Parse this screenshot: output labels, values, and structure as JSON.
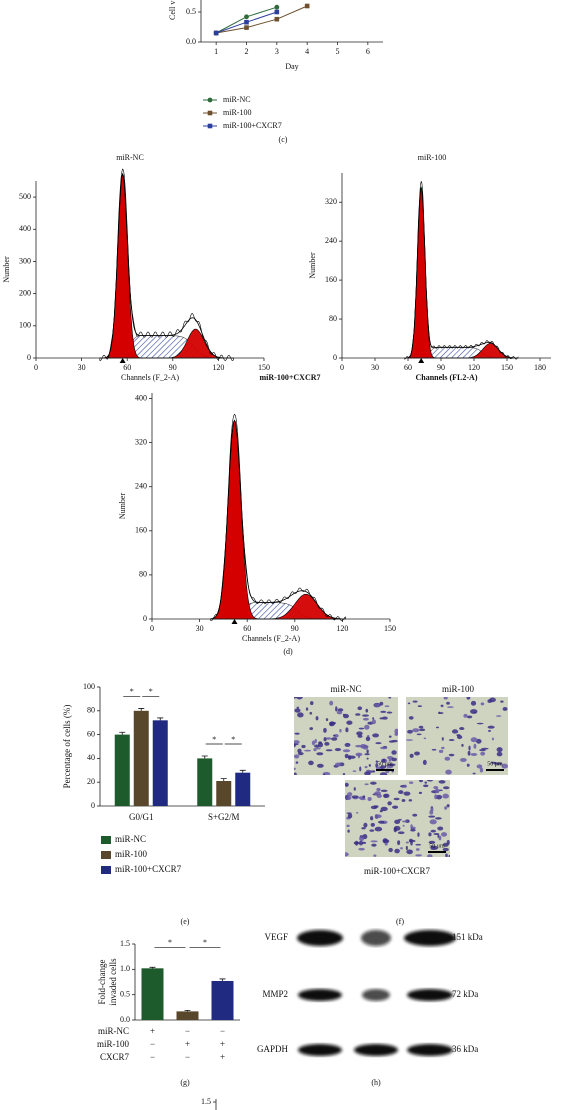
{
  "panel_c": {
    "type": "line",
    "ylabel": "Cell v",
    "xlabel": "Day",
    "x": [
      1,
      2,
      3,
      4
    ],
    "xlim": [
      0.5,
      6.5
    ],
    "xticks": [
      1,
      2,
      3,
      4,
      5,
      6
    ],
    "ylim": [
      0,
      0.7
    ],
    "yticks": [
      {
        "value": 0,
        "label": "0.0"
      },
      {
        "value": 0.5,
        "label": "0.5"
      }
    ],
    "series": [
      {
        "name": "miR-NC",
        "color": "#2f6b3c",
        "marker": "circle",
        "values": [
          0.15,
          0.42,
          0.58,
          null
        ]
      },
      {
        "name": "miR-100",
        "color": "#6e4f2e",
        "marker": "square",
        "values": [
          0.15,
          0.24,
          0.38,
          0.6
        ]
      },
      {
        "name": "miR-100+CXCR7",
        "color": "#2d3f9e",
        "marker": "square",
        "values": [
          0.15,
          0.33,
          0.5,
          null
        ]
      }
    ],
    "panel_label": "(c)"
  },
  "panel_d": {
    "type": "histograms",
    "histograms": [
      {
        "title": "miR-NC",
        "xlabel": "Channels (F_2-A)",
        "ylabel": "Number",
        "xlim": [
          0,
          150
        ],
        "xticks": [
          0,
          30,
          60,
          90,
          120,
          150
        ],
        "ylim": [
          0,
          550
        ],
        "yticks": [
          0,
          100,
          200,
          300,
          400,
          500
        ]
      },
      {
        "title": "miR-100",
        "xlabel": "Channels (FL2-A)",
        "ylabel": "Number",
        "xlim": [
          0,
          190
        ],
        "xticks": [
          0,
          30,
          60,
          90,
          120,
          150,
          180
        ],
        "ylim": [
          0,
          380
        ],
        "yticks": [
          0,
          80,
          160,
          240,
          320
        ]
      },
      {
        "title": "miR-100+CXCR7",
        "xlabel": "Channels (F_2-A)",
        "ylabel": "Number",
        "xlim": [
          0,
          150
        ],
        "xticks": [
          0,
          30,
          60,
          90,
          120,
          150
        ],
        "ylim": [
          0,
          410
        ],
        "yticks": [
          0,
          80,
          160,
          240,
          320,
          400
        ]
      }
    ],
    "panel_label": "(d)"
  },
  "panel_e": {
    "type": "bar",
    "ylabel": "Percentage of cells (%)",
    "categories": [
      "G0/G1",
      "S+G2/M"
    ],
    "ylim": [
      0,
      100
    ],
    "yticks": [
      0,
      20,
      40,
      60,
      80,
      100
    ],
    "series": [
      {
        "name": "miR-NC",
        "color": "#1d5a2c",
        "values": [
          60,
          40
        ],
        "errors": [
          2,
          2
        ]
      },
      {
        "name": "miR-100",
        "color": "#58472a",
        "values": [
          80,
          21
        ],
        "errors": [
          2,
          2
        ]
      },
      {
        "name": "miR-100+CXCR7",
        "color": "#1f2a80",
        "values": [
          72,
          28
        ],
        "errors": [
          2,
          2
        ]
      }
    ],
    "significance": [
      {
        "category": 0,
        "bars": [
          0,
          1
        ],
        "label": "*"
      },
      {
        "category": 0,
        "bars": [
          1,
          2
        ],
        "label": "*"
      },
      {
        "category": 1,
        "bars": [
          0,
          1
        ],
        "label": "*"
      },
      {
        "category": 1,
        "bars": [
          1,
          2
        ],
        "label": "*"
      }
    ],
    "panel_label": "(e)"
  },
  "panel_f": {
    "images": [
      {
        "label": "miR-NC",
        "scale_bar": "50 μm"
      },
      {
        "label": "miR-100",
        "scale_bar": "50 μm"
      },
      {
        "label": "miR-100+CXCR7",
        "scale_bar": "50 μm"
      }
    ],
    "panel_label": "(f)"
  },
  "panel_g": {
    "type": "bar",
    "ylabel": [
      "Fold-change",
      "invaded cells"
    ],
    "ylim": [
      0,
      1.5
    ],
    "yticks": [
      {
        "value": 0,
        "label": "0.0"
      },
      {
        "value": 0.5,
        "label": "0.5"
      },
      {
        "value": 1,
        "label": "1.0"
      },
      {
        "value": 1.5,
        "label": "1.5"
      }
    ],
    "values": [
      1.02,
      0.17,
      0.77
    ],
    "errors": [
      0.02,
      0.02,
      0.04
    ],
    "colors": [
      "#1d5a2c",
      "#58472a",
      "#1f2a80"
    ],
    "significance": [
      {
        "bars": [
          0,
          1
        ],
        "label": "*"
      },
      {
        "bars": [
          1,
          2
        ],
        "label": "*"
      }
    ],
    "conditions": [
      {
        "name": "miR-NC",
        "signs": [
          "+",
          "−",
          "−"
        ]
      },
      {
        "name": "miR-100",
        "signs": [
          "−",
          "+",
          "+"
        ]
      },
      {
        "name": "CXCR7",
        "signs": [
          "−",
          "−",
          "+"
        ]
      }
    ],
    "panel_label": "(g)"
  },
  "panel_h": {
    "bands": [
      {
        "name": "VEGF",
        "size": "151 kDa"
      },
      {
        "name": "MMP2",
        "size": "72 kDa"
      },
      {
        "name": "GAPDH",
        "size": "36 kDa"
      }
    ],
    "panel_label": "(h)"
  },
  "panel_i": {
    "yticks": [
      {
        "value": 1.5,
        "label": "1.5"
      }
    ]
  }
}
